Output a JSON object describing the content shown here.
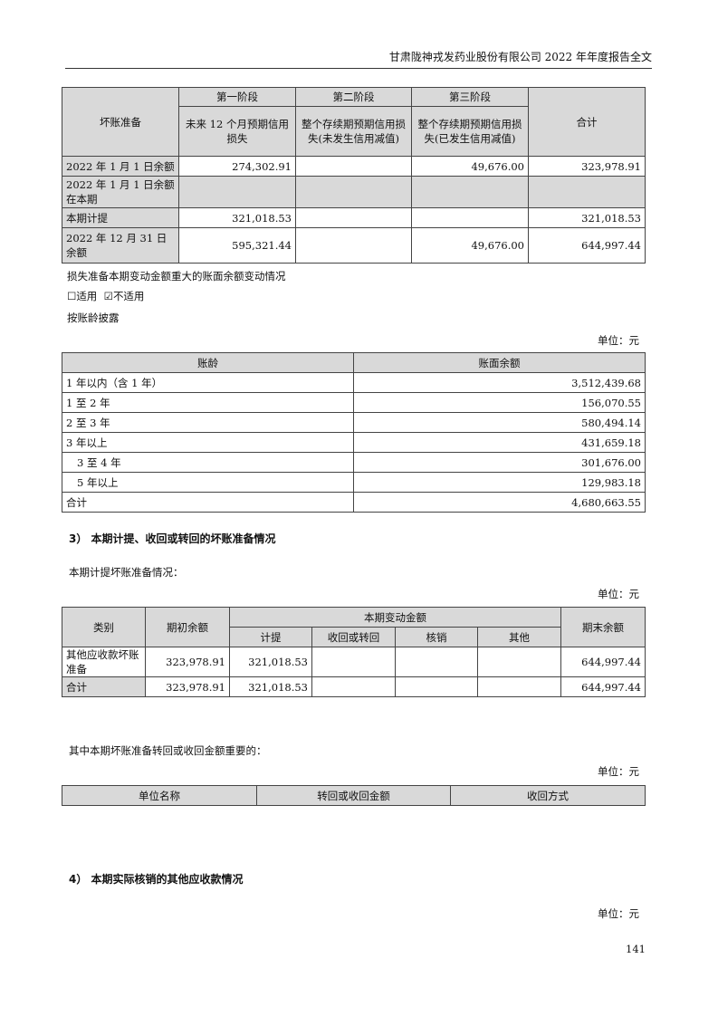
{
  "header": {
    "title": "甘肃陇神戎发药业股份有限公司 2022 年年度报告全文"
  },
  "table1": {
    "corner": "坏账准备",
    "stages": [
      "第一阶段",
      "第二阶段",
      "第三阶段"
    ],
    "stage_desc": [
      "未来 12 个月预期信用损失",
      "整个存续期预期信用损失(未发生信用减值)",
      "整个存续期预期信用损失(已发生信用减值)"
    ],
    "total": "合计",
    "rows": [
      {
        "label": "2022 年 1 月 1 日余额",
        "v": [
          "274,302.91",
          "",
          "49,676.00",
          "323,978.91"
        ]
      },
      {
        "label": "2022 年 1 月 1 日余额在本期",
        "v": [
          "",
          "",
          "",
          ""
        ]
      },
      {
        "label": "本期计提",
        "v": [
          "321,018.53",
          "",
          "",
          "321,018.53"
        ]
      },
      {
        "label": "2022 年 12 月 31 日余额",
        "v": [
          "595,321.44",
          "",
          "49,676.00",
          "644,997.44"
        ]
      }
    ]
  },
  "text1": "损失准备本期变动金额重大的账面余额变动情况",
  "applicable": {
    "yes": "适用",
    "no": "不适用",
    "checked": "no"
  },
  "text2": "按账龄披露",
  "unit": "单位：元",
  "table2": {
    "headers": [
      "账龄",
      "账面余额"
    ],
    "rows": [
      [
        "1 年以内（含 1 年）",
        "3,512,439.68"
      ],
      [
        "1 至 2 年",
        "156,070.55"
      ],
      [
        "2 至 3 年",
        "580,494.14"
      ],
      [
        "3 年以上",
        "431,659.18"
      ],
      [
        "3 至 4 年",
        "301,676.00"
      ],
      [
        "5 年以上",
        "129,983.18"
      ],
      [
        "合计",
        "4,680,663.55"
      ]
    ]
  },
  "section3": "3） 本期计提、收回或转回的坏账准备情况",
  "text3": "本期计提坏账准备情况：",
  "table3": {
    "h_type": "类别",
    "h_open": "期初余额",
    "h_change": "本期变动金额",
    "h_sub": [
      "计提",
      "收回或转回",
      "核销",
      "其他"
    ],
    "h_close": "期末余额",
    "rows": [
      [
        "其他应收款坏账准备",
        "323,978.91",
        "321,018.53",
        "",
        "",
        "",
        "644,997.44"
      ],
      [
        "合计",
        "323,978.91",
        "321,018.53",
        "",
        "",
        "",
        "644,997.44"
      ]
    ]
  },
  "text4": "其中本期坏账准备转回或收回金额重要的：",
  "table4": {
    "headers": [
      "单位名称",
      "转回或收回金额",
      "收回方式"
    ]
  },
  "section4": "4） 本期实际核销的其他应收款情况",
  "page_number": "141"
}
